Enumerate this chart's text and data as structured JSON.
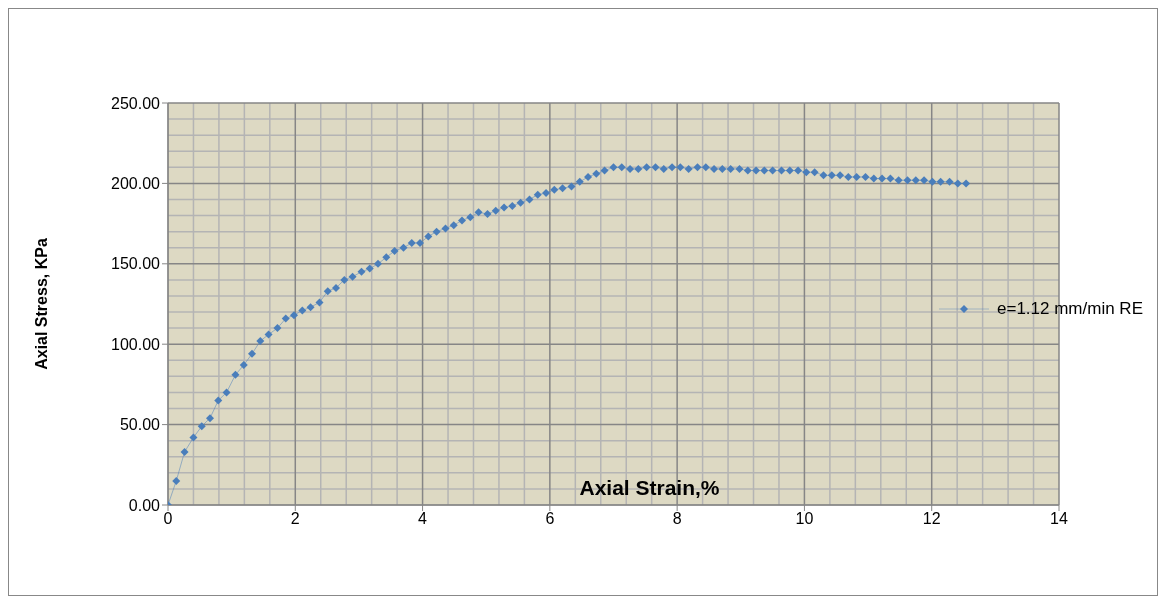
{
  "chart_data": {
    "type": "line",
    "xlabel": "Axial Strain,%",
    "ylabel": "Axial Stress, KPa",
    "x": [
      0,
      0.13,
      0.26,
      0.4,
      0.53,
      0.66,
      0.79,
      0.92,
      1.06,
      1.19,
      1.32,
      1.45,
      1.58,
      1.72,
      1.85,
      1.98,
      2.11,
      2.24,
      2.38,
      2.51,
      2.64,
      2.77,
      2.9,
      3.04,
      3.17,
      3.3,
      3.43,
      3.56,
      3.7,
      3.83,
      3.96,
      4.09,
      4.22,
      4.36,
      4.49,
      4.62,
      4.75,
      4.88,
      5.02,
      5.15,
      5.28,
      5.41,
      5.54,
      5.68,
      5.81,
      5.94,
      6.07,
      6.2,
      6.34,
      6.47,
      6.6,
      6.73,
      6.86,
      7.0,
      7.13,
      7.26,
      7.39,
      7.52,
      7.66,
      7.79,
      7.92,
      8.05,
      8.18,
      8.32,
      8.45,
      8.58,
      8.71,
      8.84,
      8.98,
      9.11,
      9.24,
      9.37,
      9.5,
      9.64,
      9.77,
      9.9,
      10.03,
      10.16,
      10.3,
      10.43,
      10.56,
      10.69,
      10.82,
      10.96,
      11.09,
      11.22,
      11.35,
      11.48,
      11.62,
      11.75,
      11.88,
      12.01,
      12.14,
      12.28,
      12.41,
      12.54
    ],
    "series": [
      {
        "name": "e=1.12 mm/min RE",
        "color": "#4a7ebb",
        "values": [
          0,
          15,
          33,
          42,
          49,
          54,
          65,
          70,
          81,
          87,
          94,
          102,
          106,
          110,
          116,
          118,
          121,
          123,
          126,
          133,
          135,
          140,
          142,
          145,
          147,
          150,
          154,
          158,
          160,
          163,
          163,
          167,
          170,
          172,
          174,
          177,
          179,
          182,
          181,
          183,
          185,
          186,
          188,
          190,
          193,
          194,
          196,
          197,
          198,
          201,
          204,
          206,
          208,
          210,
          210,
          209,
          209,
          210,
          210,
          209,
          210,
          210,
          209,
          210,
          210,
          209,
          209,
          209,
          209,
          208,
          208,
          208,
          208,
          208,
          208,
          208,
          207,
          207,
          205,
          205,
          205,
          204,
          204,
          204,
          203,
          203,
          203,
          202,
          202,
          202,
          202,
          201,
          201,
          201,
          200,
          200
        ]
      }
    ],
    "xlim": [
      0,
      14
    ],
    "xticks": [
      0,
      2,
      4,
      6,
      8,
      10,
      12,
      14
    ],
    "ylim": [
      0,
      250
    ],
    "yticks": [
      {
        "value": 0,
        "label": "0.00"
      },
      {
        "value": 50,
        "label": "50.00"
      },
      {
        "value": 100,
        "label": "100.00"
      },
      {
        "value": 150,
        "label": "150.00"
      },
      {
        "value": 200,
        "label": "200.00"
      },
      {
        "value": 250,
        "label": "250.00"
      }
    ],
    "grid": true,
    "legend": "right",
    "marker": "diamond",
    "line_style": "solid"
  }
}
